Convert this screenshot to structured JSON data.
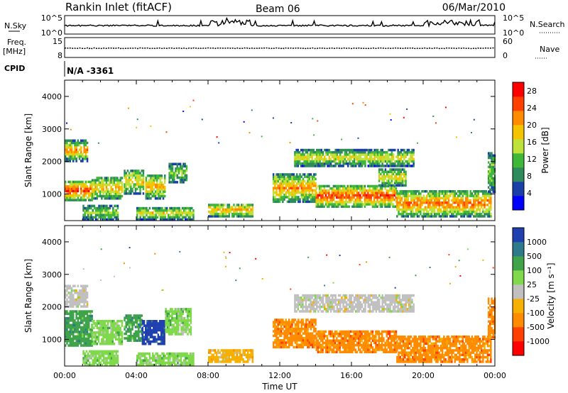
{
  "header": {
    "station": "Rankin Inlet (fitACF)",
    "beam": "Beam 06",
    "date": "06/Mar/2010"
  },
  "params": {
    "nsky_label": "N.Sky",
    "nsky_ticks": [
      "10^5",
      "10^0"
    ],
    "nsearch_label": "N.Search",
    "freq_label_1": "Freq.",
    "freq_label_2": "[MHz]",
    "freq_ticks": [
      "15",
      "8"
    ],
    "nave_label": "Nave",
    "nave_ticks": [
      "60",
      "0"
    ],
    "cpid_label": "CPID",
    "cpid_value": "N/A -3361"
  },
  "colors": {
    "power": [
      "#0000ff",
      "#1a3fa8",
      "#2f8a5c",
      "#3fb83a",
      "#bfe23a",
      "#f5c400",
      "#ff8c00",
      "#ff4000",
      "#ff0000"
    ],
    "velocity": [
      "#ff0000",
      "#ff4000",
      "#ff8c00",
      "#f5b000",
      "#c0c0c0",
      "#7fd94a",
      "#3fa34a",
      "#2f7a8a",
      "#2040b0"
    ]
  },
  "chart_data": [
    {
      "type": "heatmap",
      "name": "power",
      "xlabel": "Time UT",
      "ylabel": "Slant Range [km]",
      "xlim": [
        0,
        24
      ],
      "ylim": [
        180,
        4500
      ],
      "x_ticks": [
        "00:00",
        "04:00",
        "08:00",
        "12:00",
        "16:00",
        "20:00",
        "00:00"
      ],
      "y_ticks": [
        "1000",
        "2000",
        "3000",
        "4000"
      ],
      "colorbar_label": "Power [dB]",
      "colorbar_ticks": [
        "4",
        "8",
        "12",
        "16",
        "20",
        "24",
        "28"
      ],
      "clim": [
        0,
        30
      ],
      "bands": [
        {
          "t0": 0.0,
          "t1": 1.5,
          "r0": 850,
          "r1": 1450,
          "core": 26,
          "edge": 10
        },
        {
          "t0": 1.5,
          "t1": 3.2,
          "r0": 900,
          "r1": 1550,
          "core": 20,
          "edge": 8
        },
        {
          "t0": 3.3,
          "t1": 4.4,
          "r0": 1050,
          "r1": 1800,
          "core": 18,
          "edge": 8
        },
        {
          "t0": 4.5,
          "t1": 5.6,
          "r0": 900,
          "r1": 1650,
          "core": 20,
          "edge": 8
        },
        {
          "t0": 5.8,
          "t1": 6.8,
          "r0": 1400,
          "r1": 2000,
          "core": 14,
          "edge": 6
        },
        {
          "t0": 0.0,
          "t1": 1.3,
          "r0": 2050,
          "r1": 2700,
          "core": 22,
          "edge": 6
        },
        {
          "t0": 1.0,
          "t1": 3.0,
          "r0": 250,
          "r1": 700,
          "core": 14,
          "edge": 6
        },
        {
          "t0": 4.0,
          "t1": 7.2,
          "r0": 250,
          "r1": 650,
          "core": 18,
          "edge": 6
        },
        {
          "t0": 8.0,
          "t1": 10.5,
          "r0": 350,
          "r1": 750,
          "core": 20,
          "edge": 8
        },
        {
          "t0": 11.6,
          "t1": 14.0,
          "r0": 800,
          "r1": 1650,
          "core": 22,
          "edge": 8
        },
        {
          "t0": 14.0,
          "t1": 18.5,
          "r0": 650,
          "r1": 1300,
          "core": 26,
          "edge": 10
        },
        {
          "t0": 18.5,
          "t1": 23.8,
          "r0": 350,
          "r1": 1150,
          "core": 24,
          "edge": 8
        },
        {
          "t0": 12.8,
          "t1": 19.5,
          "r0": 1900,
          "r1": 2400,
          "core": 18,
          "edge": 6
        },
        {
          "t0": 17.5,
          "t1": 19.0,
          "r0": 1300,
          "r1": 1800,
          "core": 18,
          "edge": 8
        },
        {
          "t0": 23.6,
          "t1": 24.0,
          "r0": 1100,
          "r1": 2300,
          "core": 14,
          "edge": 6
        }
      ]
    },
    {
      "type": "heatmap",
      "name": "velocity",
      "xlabel": "Time UT",
      "ylabel": "Slant Range [km]",
      "xlim": [
        0,
        24
      ],
      "ylim": [
        180,
        4500
      ],
      "x_ticks": [
        "00:00",
        "04:00",
        "08:00",
        "12:00",
        "16:00",
        "20:00",
        "00:00"
      ],
      "y_ticks": [
        "1000",
        "2000",
        "3000",
        "4000"
      ],
      "colorbar_label": "Velocity [m s⁻¹]",
      "colorbar_ticks": [
        "1000",
        "500",
        "100",
        "25",
        "-25",
        "-100",
        "-500",
        "-1000"
      ],
      "bands": [
        {
          "t0": 0.0,
          "t1": 1.5,
          "r0": 850,
          "r1": 1900,
          "v": 6
        },
        {
          "t0": 1.5,
          "t1": 3.2,
          "r0": 900,
          "r1": 1600,
          "v": 5
        },
        {
          "t0": 3.3,
          "t1": 4.3,
          "r0": 1000,
          "r1": 1800,
          "v": 6
        },
        {
          "t0": 4.3,
          "t1": 5.6,
          "r0": 900,
          "r1": 1650,
          "v": 8
        },
        {
          "t0": 5.6,
          "t1": 7.0,
          "r0": 1200,
          "r1": 2000,
          "v": 5
        },
        {
          "t0": 0.0,
          "t1": 1.3,
          "r0": 2050,
          "r1": 2700,
          "v": 4
        },
        {
          "t0": 1.0,
          "t1": 3.0,
          "r0": 250,
          "r1": 700,
          "v": 5
        },
        {
          "t0": 4.0,
          "t1": 7.2,
          "r0": 250,
          "r1": 650,
          "v": 5
        },
        {
          "t0": 8.0,
          "t1": 10.5,
          "r0": 350,
          "r1": 750,
          "v": 3
        },
        {
          "t0": 11.6,
          "t1": 14.0,
          "r0": 800,
          "r1": 1650,
          "v": 2
        },
        {
          "t0": 14.0,
          "t1": 18.5,
          "r0": 650,
          "r1": 1300,
          "v": 2
        },
        {
          "t0": 18.5,
          "t1": 23.8,
          "r0": 350,
          "r1": 1150,
          "v": 2
        },
        {
          "t0": 12.8,
          "t1": 19.5,
          "r0": 1900,
          "r1": 2400,
          "v": 4
        },
        {
          "t0": 23.6,
          "t1": 24.0,
          "r0": 1100,
          "r1": 2300,
          "v": 2
        }
      ]
    }
  ]
}
